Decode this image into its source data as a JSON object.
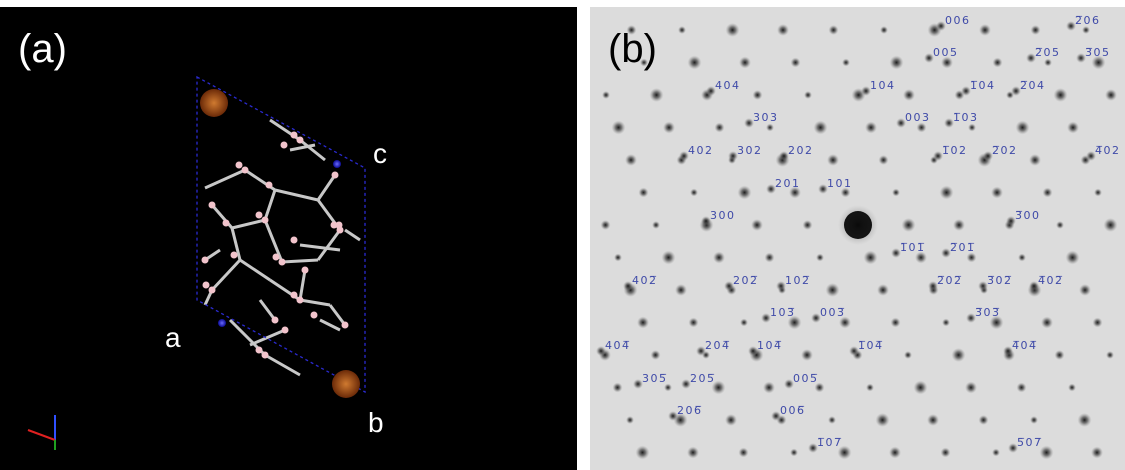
{
  "panel_a": {
    "label": "(a)",
    "axis_labels": [
      "a",
      "b",
      "c"
    ]
  },
  "panel_b": {
    "label": "(b)",
    "spot_labels": [
      "006",
      "2̅06",
      "005",
      "2̅05",
      "3̅05",
      "404",
      "104",
      "1̅04",
      "2̅04",
      "303",
      "003",
      "1̅03",
      "402",
      "302",
      "202",
      "1̅02",
      "2̅02",
      "4̅02",
      "201",
      "101",
      "300",
      "3̅00",
      "1̅01̅",
      "2̅01̅",
      "402̅",
      "202̅",
      "102̅",
      "2̅02̅",
      "3̅02̅",
      "4̅02̅",
      "103̅",
      "003̅",
      "3̅03̅",
      "404̅",
      "204̅",
      "104̅",
      "1̅04̅",
      "4̅04̅",
      "305̅",
      "205̅",
      "005̅",
      "206̅",
      "006̅",
      "1̅07̅",
      "5̅07̅"
    ]
  }
}
